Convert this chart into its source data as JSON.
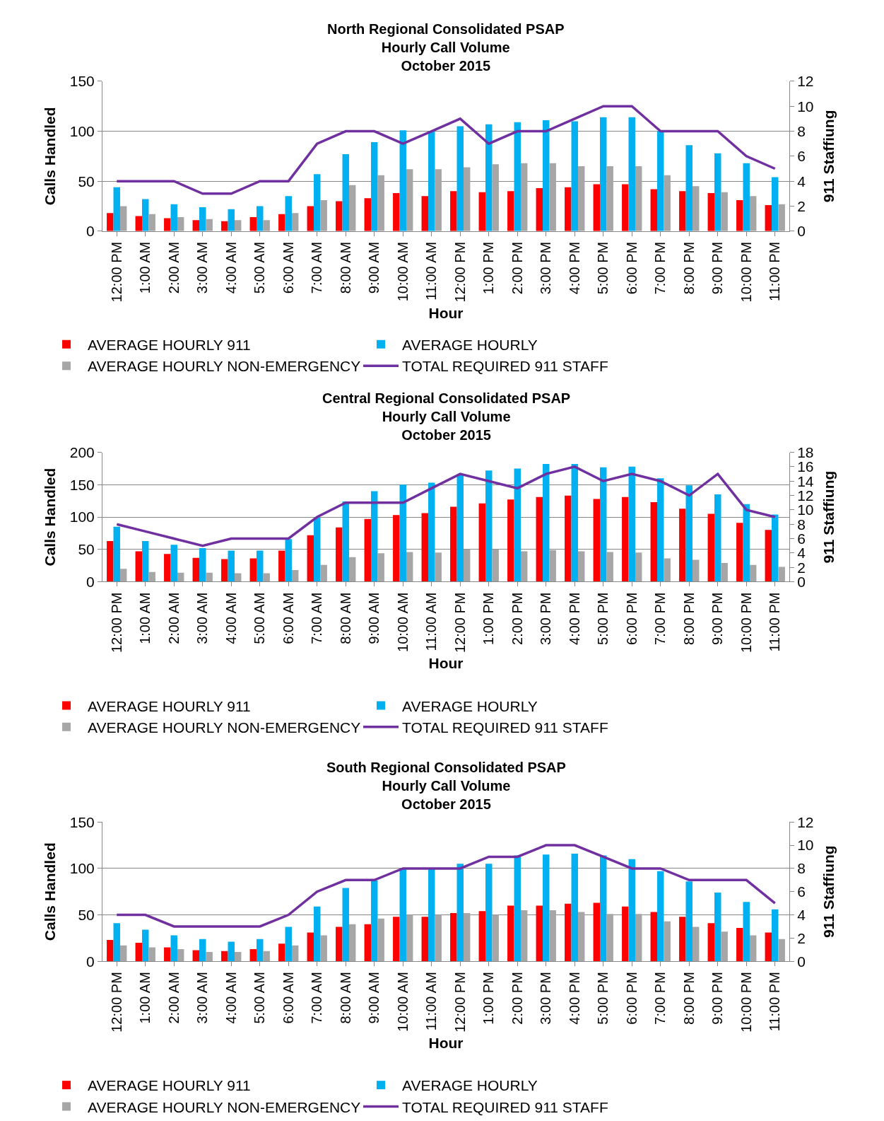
{
  "chart_data": [
    {
      "type": "bar",
      "title": "North Regional Consolidated PSAP",
      "subtitle": "Hourly Call Volume\nOctober 2015",
      "xlabel": "Hour",
      "ylabel": "Calls Handled",
      "y2label": "911 Staffiung",
      "categories": [
        "12:00 PM",
        "1:00 AM",
        "2:00 AM",
        "3:00 AM",
        "4:00 AM",
        "5:00 AM",
        "6:00 AM",
        "7:00 AM",
        "8:00 AM",
        "9:00 AM",
        "10:00 AM",
        "11:00 AM",
        "12:00 PM",
        "1:00 PM",
        "2:00 PM",
        "3:00 PM",
        "4:00 PM",
        "5:00 PM",
        "6:00 PM",
        "7:00 PM",
        "8:00 PM",
        "9:00 PM",
        "10:00 PM",
        "11:00 PM"
      ],
      "ylim": [
        0,
        150
      ],
      "yticks": [
        0,
        50,
        100,
        150
      ],
      "y2lim": [
        0,
        12
      ],
      "y2ticks": [
        0,
        2,
        4,
        6,
        8,
        10,
        12
      ],
      "grid": "y",
      "legend": "bottom",
      "series": [
        {
          "name": "AVERAGE HOURLY 911",
          "color": "#ff0000",
          "values": [
            18,
            15,
            13,
            11,
            10,
            14,
            17,
            25,
            30,
            33,
            38,
            35,
            40,
            39,
            40,
            43,
            44,
            47,
            47,
            42,
            40,
            38,
            31,
            26
          ]
        },
        {
          "name": "AVERAGE HOURLY",
          "color": "#00b0f0",
          "values": [
            44,
            32,
            27,
            24,
            22,
            25,
            35,
            57,
            77,
            89,
            101,
            100,
            105,
            107,
            109,
            111,
            110,
            114,
            114,
            100,
            86,
            78,
            68,
            54
          ]
        },
        {
          "name": "AVERAGE HOURLY NON-EMERGENCY",
          "color": "#a6a6a6",
          "values": [
            25,
            17,
            14,
            12,
            11,
            11,
            18,
            31,
            46,
            56,
            62,
            62,
            64,
            67,
            68,
            68,
            65,
            65,
            65,
            56,
            45,
            39,
            35,
            27
          ]
        },
        {
          "name": "TOTAL REQUIRED 911 STAFF",
          "type": "line",
          "axis": "y2",
          "color": "#7030a0",
          "values": [
            4,
            4,
            4,
            3,
            3,
            4,
            4,
            7,
            8,
            8,
            7,
            8,
            9,
            7,
            8,
            8,
            9,
            10,
            10,
            8,
            8,
            8,
            6,
            5
          ]
        }
      ]
    },
    {
      "type": "bar",
      "title": "Central Regional Consolidated PSAP",
      "subtitle": "Hourly Call Volume\nOctober 2015",
      "xlabel": "Hour",
      "ylabel": "Calls Handled",
      "y2label": "911 Staffiung",
      "categories": [
        "12:00 PM",
        "1:00 AM",
        "2:00 AM",
        "3:00 AM",
        "4:00 AM",
        "5:00 AM",
        "6:00 AM",
        "7:00 AM",
        "8:00 AM",
        "9:00 AM",
        "10:00 AM",
        "11:00 AM",
        "12:00 PM",
        "1:00 PM",
        "2:00 PM",
        "3:00 PM",
        "4:00 PM",
        "5:00 PM",
        "6:00 PM",
        "7:00 PM",
        "8:00 PM",
        "9:00 PM",
        "10:00 PM",
        "11:00 PM"
      ],
      "ylim": [
        0,
        200
      ],
      "yticks": [
        0,
        50,
        100,
        150,
        200
      ],
      "y2lim": [
        0,
        18
      ],
      "y2ticks": [
        0,
        2,
        4,
        6,
        8,
        10,
        12,
        14,
        16,
        18
      ],
      "grid": "y",
      "legend": "bottom",
      "series": [
        {
          "name": "AVERAGE HOURLY 911",
          "color": "#ff0000",
          "values": [
            63,
            47,
            43,
            37,
            35,
            36,
            48,
            72,
            84,
            97,
            103,
            106,
            116,
            121,
            127,
            131,
            133,
            128,
            131,
            123,
            113,
            105,
            91,
            80
          ]
        },
        {
          "name": "AVERAGE HOURLY",
          "color": "#00b0f0",
          "values": [
            85,
            63,
            57,
            52,
            48,
            48,
            66,
            99,
            124,
            140,
            150,
            153,
            165,
            172,
            175,
            182,
            182,
            177,
            178,
            160,
            149,
            135,
            120,
            104
          ]
        },
        {
          "name": "AVERAGE HOURLY NON-EMERGENCY",
          "color": "#a6a6a6",
          "values": [
            20,
            15,
            14,
            14,
            13,
            13,
            18,
            26,
            38,
            44,
            46,
            45,
            50,
            50,
            47,
            49,
            47,
            46,
            45,
            36,
            34,
            29,
            26,
            23
          ]
        },
        {
          "name": "TOTAL REQUIRED 911 STAFF",
          "type": "line",
          "axis": "y2",
          "color": "#7030a0",
          "values": [
            8,
            7,
            6,
            5,
            6,
            6,
            6,
            9,
            11,
            11,
            11,
            13,
            15,
            14,
            13,
            15,
            16,
            14,
            15,
            14,
            12,
            15,
            10,
            9
          ]
        }
      ]
    },
    {
      "type": "bar",
      "title": "South Regional Consolidated PSAP",
      "subtitle": "Hourly Call Volume\nOctober 2015",
      "xlabel": "Hour",
      "ylabel": "Calls Handled",
      "y2label": "911 Staffiung",
      "categories": [
        "12:00 PM",
        "1:00 AM",
        "2:00 AM",
        "3:00 AM",
        "4:00 AM",
        "5:00 AM",
        "6:00 AM",
        "7:00 AM",
        "8:00 AM",
        "9:00 AM",
        "10:00 AM",
        "11:00 AM",
        "12:00 PM",
        "1:00 PM",
        "2:00 PM",
        "3:00 PM",
        "4:00 PM",
        "5:00 PM",
        "6:00 PM",
        "7:00 PM",
        "8:00 PM",
        "9:00 PM",
        "10:00 PM",
        "11:00 PM"
      ],
      "ylim": [
        0,
        150
      ],
      "yticks": [
        0,
        50,
        100,
        150
      ],
      "y2lim": [
        0,
        12
      ],
      "y2ticks": [
        0,
        2,
        4,
        6,
        8,
        10,
        12
      ],
      "grid": "y",
      "legend": "bottom",
      "series": [
        {
          "name": "AVERAGE HOURLY 911",
          "color": "#ff0000",
          "values": [
            23,
            20,
            15,
            12,
            11,
            13,
            19,
            31,
            37,
            40,
            48,
            48,
            52,
            54,
            60,
            60,
            62,
            63,
            59,
            53,
            48,
            41,
            36,
            31
          ]
        },
        {
          "name": "AVERAGE HOURLY",
          "color": "#00b0f0",
          "values": [
            41,
            34,
            28,
            24,
            21,
            24,
            37,
            59,
            79,
            87,
            100,
            100,
            105,
            105,
            114,
            115,
            116,
            114,
            110,
            97,
            86,
            74,
            64,
            56
          ]
        },
        {
          "name": "AVERAGE HOURLY NON-EMERGENCY",
          "color": "#a6a6a6",
          "values": [
            17,
            15,
            13,
            10,
            10,
            11,
            17,
            28,
            40,
            46,
            50,
            50,
            52,
            50,
            55,
            55,
            53,
            51,
            51,
            43,
            37,
            32,
            28,
            24
          ]
        },
        {
          "name": "TOTAL REQUIRED 911 STAFF",
          "type": "line",
          "axis": "y2",
          "color": "#7030a0",
          "values": [
            4,
            4,
            3,
            3,
            3,
            3,
            4,
            6,
            7,
            7,
            8,
            8,
            8,
            9,
            9,
            10,
            10,
            9,
            8,
            8,
            7,
            7,
            7,
            5
          ]
        }
      ]
    }
  ]
}
